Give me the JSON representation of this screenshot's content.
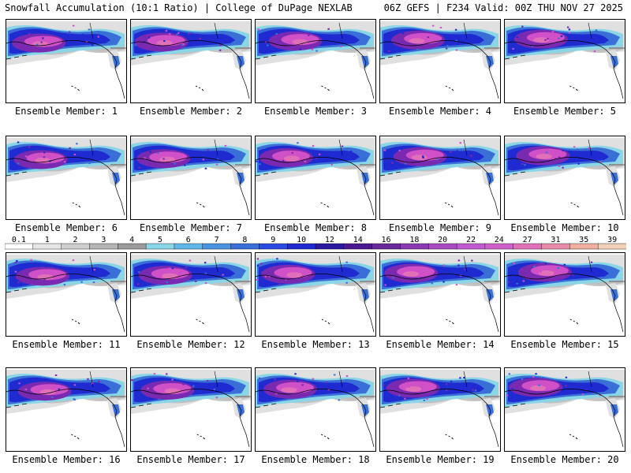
{
  "header": {
    "title_left": "Snowfall Accumulation (10:1 Ratio) | College of DuPage NEXLAB",
    "title_right": "06Z GEFS | F234 Valid: 00Z THU NOV 27 2025"
  },
  "panels": [
    {
      "label": "Ensemble Member: 1"
    },
    {
      "label": "Ensemble Member: 2"
    },
    {
      "label": "Ensemble Member: 3"
    },
    {
      "label": "Ensemble Member: 4"
    },
    {
      "label": "Ensemble Member: 5"
    },
    {
      "label": "Ensemble Member: 6"
    },
    {
      "label": "Ensemble Member: 7"
    },
    {
      "label": "Ensemble Member: 8"
    },
    {
      "label": "Ensemble Member: 9"
    },
    {
      "label": "Ensemble Member: 10"
    },
    {
      "label": "Ensemble Member: 11"
    },
    {
      "label": "Ensemble Member: 12"
    },
    {
      "label": "Ensemble Member: 13"
    },
    {
      "label": "Ensemble Member: 14"
    },
    {
      "label": "Ensemble Member: 15"
    },
    {
      "label": "Ensemble Member: 16"
    },
    {
      "label": "Ensemble Member: 17"
    },
    {
      "label": "Ensemble Member: 18"
    },
    {
      "label": "Ensemble Member: 19"
    },
    {
      "label": "Ensemble Member: 20"
    }
  ],
  "legend": {
    "labels": [
      "0.1",
      "1",
      "2",
      "3",
      "4",
      "5",
      "6",
      "7",
      "8",
      "9",
      "10",
      "12",
      "14",
      "16",
      "18",
      "20",
      "22",
      "24",
      "27",
      "31",
      "35",
      "39"
    ],
    "colors": [
      "#ffffff",
      "#e6e6e6",
      "#cfcfcf",
      "#b5b5b5",
      "#9a9a9a",
      "#8ad6e6",
      "#5fb6e8",
      "#4a93e0",
      "#3a6fd8",
      "#2a4ae0",
      "#1f2ad0",
      "#2a1aa0",
      "#4a1a90",
      "#6a2a9a",
      "#8a3ab0",
      "#a84ac0",
      "#c05ad0",
      "#d060c8",
      "#e070b8",
      "#e88aa8",
      "#f0b0a0",
      "#f4d0b8"
    ]
  },
  "map_colors": {
    "land": "#ffffff",
    "gray_light": "#e0e0e0",
    "gray_mid": "#b8b8b8",
    "cyan": "#8ad6e6",
    "blue": "#3a6fd8",
    "deep_blue": "#1f2ad0",
    "purple": "#7a2ab0",
    "magenta": "#d050c8",
    "pink": "#e070b8"
  }
}
